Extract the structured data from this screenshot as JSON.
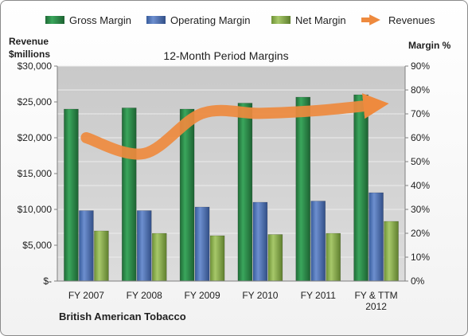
{
  "chart_data": {
    "type": "bar",
    "title": "12-Month Period Margins",
    "company": "British American Tobacco",
    "y_left_label_line1": "Revenue",
    "y_left_label_line2": "$millions",
    "y_right_label": "Margin %",
    "categories": [
      [
        "FY 2007"
      ],
      [
        "FY 2008"
      ],
      [
        "FY 2009"
      ],
      [
        "FY 2010"
      ],
      [
        "FY 2011"
      ],
      [
        "FY & TTM",
        "2012"
      ]
    ],
    "series": [
      {
        "name": "Gross Margin",
        "type": "bar",
        "axis": "right",
        "color": "#2e8b4a",
        "values": [
          72,
          72.5,
          72,
          74.5,
          77,
          78
        ]
      },
      {
        "name": "Operating Margin",
        "type": "bar",
        "axis": "right",
        "color": "#4f75b8",
        "values": [
          29.5,
          29.5,
          31,
          33,
          33.5,
          37
        ]
      },
      {
        "name": "Net Margin",
        "type": "bar",
        "axis": "right",
        "color": "#8cb14a",
        "values": [
          21,
          20,
          19,
          19.5,
          20,
          25
        ]
      },
      {
        "name": "Revenues",
        "type": "line",
        "axis": "left",
        "color": "#ee8a3e",
        "values": [
          20000,
          17800,
          23400,
          23400,
          23800,
          24600
        ]
      }
    ],
    "y_left": {
      "min": 0,
      "max": 30000,
      "ticks": [
        "$-",
        "$5,000",
        "$10,000",
        "$15,000",
        "$20,000",
        "$25,000",
        "$30,000"
      ]
    },
    "y_right": {
      "min": 0,
      "max": 90,
      "ticks": [
        "0%",
        "10%",
        "20%",
        "30%",
        "40%",
        "50%",
        "60%",
        "70%",
        "80%",
        "90%"
      ]
    },
    "legend_position": "top",
    "grid": true
  }
}
